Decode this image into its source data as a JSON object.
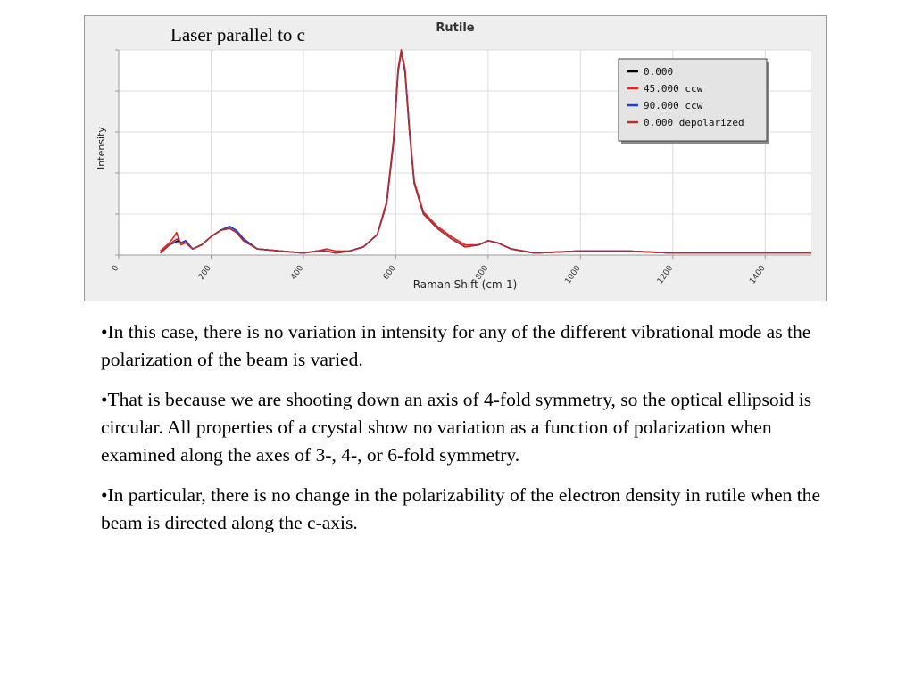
{
  "chart_data": {
    "type": "line",
    "title": "Rutile",
    "overlay_label": "Laser parallel to c",
    "xlabel": "Raman Shift (cm-1)",
    "ylabel": "Intensity",
    "xlim": [
      0,
      1500
    ],
    "ylim": [
      0,
      100
    ],
    "xticks": [
      "0",
      "200",
      "400",
      "600",
      "800",
      "1000",
      "1200",
      "1400"
    ],
    "grid": true,
    "legend_position": "top-right",
    "series": [
      {
        "name": "0.000",
        "color": "#000000",
        "x": [
          90,
          100,
          110,
          120,
          128,
          135,
          145,
          160,
          180,
          200,
          220,
          240,
          255,
          270,
          300,
          350,
          400,
          430,
          450,
          470,
          500,
          530,
          560,
          580,
          595,
          605,
          612,
          620,
          630,
          640,
          660,
          690,
          720,
          750,
          780,
          800,
          820,
          850,
          900,
          1000,
          1100,
          1200,
          1300,
          1400,
          1500
        ],
        "y": [
          1,
          3,
          5,
          6,
          7,
          6,
          7,
          3,
          5,
          9,
          12,
          14,
          12,
          8,
          3,
          2,
          1,
          2,
          2,
          1,
          2,
          4,
          10,
          25,
          55,
          90,
          100,
          90,
          60,
          35,
          20,
          13,
          8,
          4,
          5,
          7,
          6,
          3,
          1,
          2,
          2,
          1,
          1,
          1,
          1
        ]
      },
      {
        "name": "45.000 ccw",
        "color": "#e8231f",
        "x": [
          90,
          100,
          110,
          120,
          125,
          130,
          135,
          145,
          160,
          180,
          200,
          220,
          240,
          255,
          270,
          300,
          350,
          400,
          430,
          450,
          470,
          500,
          530,
          560,
          580,
          595,
          605,
          612,
          620,
          630,
          640,
          660,
          690,
          720,
          750,
          780,
          800,
          820,
          850,
          900,
          1000,
          1100,
          1200,
          1300,
          1400,
          1500
        ],
        "y": [
          2,
          4,
          6,
          9,
          11,
          8,
          5,
          6,
          3,
          5,
          9,
          12,
          13,
          11,
          7,
          3,
          2,
          1,
          2,
          3,
          2,
          2,
          4,
          10,
          26,
          56,
          91,
          100,
          91,
          61,
          36,
          21,
          14,
          9,
          5,
          5,
          7,
          6,
          3,
          1,
          2,
          2,
          1,
          1,
          1,
          1
        ]
      },
      {
        "name": "90.000 ccw",
        "color": "#1f3fe0",
        "x": [
          90,
          100,
          110,
          120,
          128,
          135,
          145,
          160,
          180,
          200,
          220,
          240,
          255,
          270,
          300,
          350,
          400,
          430,
          450,
          470,
          500,
          530,
          560,
          580,
          595,
          605,
          612,
          620,
          630,
          640,
          660,
          690,
          720,
          750,
          780,
          800,
          820,
          850,
          900,
          1000,
          1100,
          1200,
          1300,
          1400,
          1500
        ],
        "y": [
          1,
          3,
          5,
          6,
          6,
          6,
          7,
          3,
          5,
          9,
          12,
          14,
          12,
          8,
          3,
          2,
          1,
          2,
          2,
          1,
          2,
          4,
          10,
          25,
          54,
          89,
          99,
          89,
          59,
          35,
          20,
          13,
          8,
          4,
          5,
          7,
          6,
          3,
          1,
          2,
          2,
          1,
          1,
          1,
          1
        ]
      },
      {
        "name": "0.000 depolarized",
        "color": "#b03030",
        "x": [
          90,
          100,
          110,
          120,
          128,
          135,
          145,
          160,
          180,
          200,
          220,
          240,
          255,
          270,
          300,
          350,
          400,
          430,
          450,
          470,
          500,
          530,
          560,
          580,
          595,
          605,
          612,
          620,
          630,
          640,
          660,
          690,
          720,
          750,
          780,
          800,
          820,
          850,
          900,
          1000,
          1100,
          1200,
          1300,
          1400,
          1500
        ],
        "y": [
          1,
          3,
          5,
          7,
          8,
          6,
          6,
          3,
          5,
          9,
          12,
          13,
          11,
          7,
          3,
          2,
          1,
          2,
          2,
          1,
          2,
          4,
          10,
          25,
          55,
          90,
          99,
          90,
          60,
          35,
          20,
          13,
          8,
          4,
          5,
          7,
          6,
          3,
          1,
          2,
          2,
          1,
          1,
          1,
          1
        ]
      }
    ]
  },
  "bullets": [
    "•In this case, there is no variation in intensity for any of the different vibrational mode as the polarization of the beam is varied.",
    "•That is because we are shooting down an axis of 4-fold symmetry, so the optical ellipsoid is circular. All properties of a crystal show no variation as a function of polarization when examined along the axes of 3-, 4-, or 6-fold symmetry.",
    "•In particular, there is no change in the polarizability of the electron density in rutile when the beam is directed along the c-axis."
  ]
}
